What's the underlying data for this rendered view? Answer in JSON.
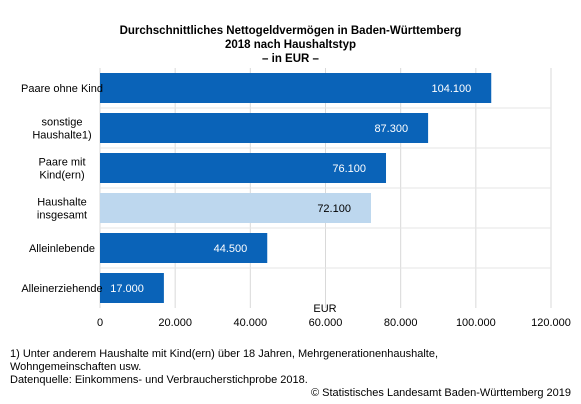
{
  "chart_data": {
    "type": "bar",
    "orientation": "horizontal",
    "title": [
      "Durchschnittliches Nettogeldvermögen in Baden-Württemberg",
      "2018 nach Haushaltstyp",
      "– in EUR –"
    ],
    "xlabel": "EUR",
    "xlim": [
      0,
      120000
    ],
    "xticks": [
      0,
      20000,
      40000,
      60000,
      80000,
      100000,
      120000
    ],
    "xtick_labels": [
      "0",
      "20.000",
      "40.000",
      "60.000",
      "80.000",
      "100.000",
      "120.000"
    ],
    "grid": true,
    "categories": [
      [
        "Paare ohne Kind"
      ],
      [
        "sonstige",
        "Haushalte1)"
      ],
      [
        "Paare mit",
        "Kind(ern)"
      ],
      [
        "Haushalte",
        "insgesamt"
      ],
      [
        "Alleinlebende"
      ],
      [
        "Alleinerziehende"
      ]
    ],
    "values": [
      104100,
      87300,
      76100,
      72100,
      44500,
      17000
    ],
    "value_labels": [
      "104.100",
      "87.300",
      "76.100",
      "72.100",
      "44.500",
      "17.000"
    ],
    "colors": [
      "#0a63b8",
      "#0a63b8",
      "#0a63b8",
      "#bdd7ee",
      "#0a63b8",
      "#0a63b8"
    ],
    "label_colors": [
      "#ffffff",
      "#ffffff",
      "#ffffff",
      "#000000",
      "#ffffff",
      "#ffffff"
    ]
  },
  "footnote": {
    "line1": "1) Unter anderem Haushalte mit Kind(ern) über 18 Jahren, Mehrgenerationenhaushalte,",
    "line2": "Wohngemeinschaften usw.",
    "line3": "Datenquelle: Einkommens- und Verbraucherstichprobe 2018."
  },
  "copyright": "© Statistisches Landesamt Baden-Württemberg 2019"
}
